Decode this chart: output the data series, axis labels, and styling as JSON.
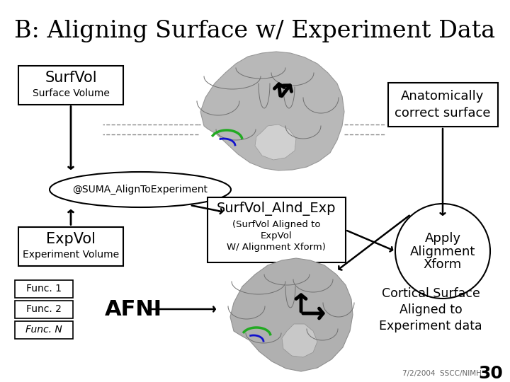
{
  "title": "B: Aligning Surface w/ Experiment Data",
  "title_fontsize": 24,
  "bg_color": "#ffffff",
  "text_color": "#000000",
  "surfvol_label": "SurfVol",
  "surfvol_sub": "Surface Volume",
  "suma_label": "@SUMA_AlignToExperiment",
  "expvol_label": "ExpVol",
  "expvol_sub": "Experiment Volume",
  "func1_label": "Func. 1",
  "func2_label": "Func. 2",
  "funcN_label": "Func. N",
  "afni_label": "AFNI",
  "surfvol_alnd_label": "SurfVol_Alnd_Exp",
  "surfvol_alnd_sub1": "(SurfVol Aligned to",
  "surfvol_alnd_sub2": "ExpVol",
  "surfvol_alnd_sub3": "W/ Alignment Xform)",
  "apply_label1": "Apply",
  "apply_label2": "Alignment",
  "apply_label3": "Xform",
  "anat_label1": "Anatomically",
  "anat_label2": "correct surface",
  "cortical_label1": "Cortical Surface",
  "cortical_label2": "Aligned to",
  "cortical_label3": "Experiment data",
  "footer": "7/2/2004  SSCC/NIMH",
  "page_num": "30",
  "green_color": "#22aa22",
  "blue_color": "#1111cc",
  "brain1_gray1": "#b8b8b8",
  "brain1_gray2": "#d0d0d0",
  "brain1_gray3": "#989898",
  "brain2_gray1": "#b0b0b0",
  "brain2_gray2": "#c8c8c8",
  "brain2_gray3": "#909090"
}
